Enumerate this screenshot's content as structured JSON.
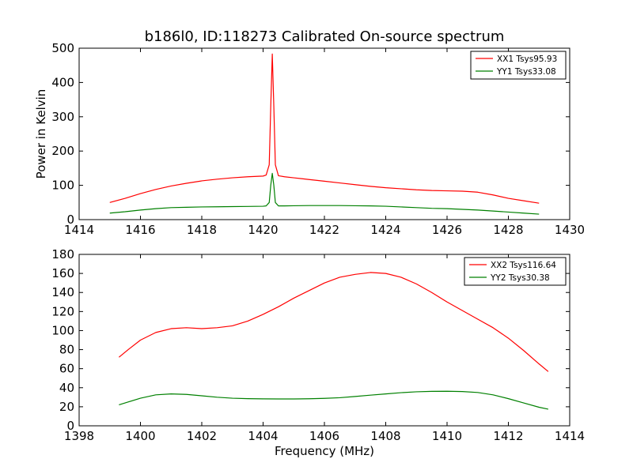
{
  "colors": {
    "xx": "#ff0000",
    "yy": "#008000",
    "axis": "#000000",
    "background": "#ffffff"
  },
  "chart_data": [
    {
      "type": "line",
      "title": "b186l0, ID:118273 Calibrated On-source spectrum",
      "xlabel": "",
      "ylabel": "Power in Kelvin",
      "xlim": [
        1414,
        1430
      ],
      "ylim": [
        0,
        500
      ],
      "xticks": [
        1414,
        1416,
        1418,
        1420,
        1422,
        1424,
        1426,
        1428,
        1430
      ],
      "yticks": [
        0,
        100,
        200,
        300,
        400,
        500
      ],
      "grid": false,
      "legend_position": "top-right",
      "series": [
        {
          "name": "XX1 Tsys95.93",
          "x": [
            1415.0,
            1415.5,
            1416.0,
            1416.5,
            1417.0,
            1417.5,
            1418.0,
            1418.5,
            1419.0,
            1419.5,
            1420.0,
            1420.1,
            1420.2,
            1420.25,
            1420.3,
            1420.35,
            1420.4,
            1420.5,
            1420.7,
            1421.0,
            1421.5,
            1422.0,
            1422.5,
            1423.0,
            1423.5,
            1424.0,
            1424.5,
            1425.0,
            1425.5,
            1426.0,
            1426.5,
            1427.0,
            1427.5,
            1428.0,
            1428.5,
            1429.0
          ],
          "y": [
            50,
            62,
            76,
            88,
            98,
            106,
            113,
            118,
            122,
            125,
            127,
            130,
            160,
            330,
            483,
            330,
            160,
            128,
            125,
            122,
            117,
            112,
            107,
            102,
            97,
            93,
            90,
            87,
            85,
            84,
            83,
            80,
            72,
            62,
            55,
            48
          ]
        },
        {
          "name": "YY1 Tsys33.08",
          "x": [
            1415.0,
            1415.5,
            1416.0,
            1416.5,
            1417.0,
            1417.5,
            1418.0,
            1418.5,
            1419.0,
            1419.5,
            1420.0,
            1420.1,
            1420.2,
            1420.25,
            1420.3,
            1420.35,
            1420.4,
            1420.5,
            1420.7,
            1421.0,
            1421.5,
            1422.0,
            1422.5,
            1423.0,
            1423.5,
            1424.0,
            1424.5,
            1425.0,
            1425.5,
            1426.0,
            1426.5,
            1427.0,
            1427.5,
            1428.0,
            1428.5,
            1429.0
          ],
          "y": [
            19,
            23,
            28,
            32,
            35,
            36,
            37,
            37.5,
            38,
            38.5,
            39,
            40,
            50,
            100,
            135,
            100,
            50,
            40,
            40,
            40.5,
            41,
            41,
            41,
            40.5,
            40,
            39,
            37,
            35,
            33,
            32,
            30,
            28,
            25,
            22,
            19,
            16
          ]
        }
      ]
    },
    {
      "type": "line",
      "title": "",
      "xlabel": "Frequency (MHz)",
      "ylabel": "",
      "xlim": [
        1398,
        1414
      ],
      "ylim": [
        0,
        180
      ],
      "xticks": [
        1398,
        1400,
        1402,
        1404,
        1406,
        1408,
        1410,
        1412,
        1414
      ],
      "yticks": [
        0,
        20,
        40,
        60,
        80,
        100,
        120,
        140,
        160,
        180
      ],
      "grid": false,
      "legend_position": "top-right",
      "series": [
        {
          "name": "XX2 Tsys116.64",
          "x": [
            1399.3,
            1399.6,
            1400.0,
            1400.5,
            1401.0,
            1401.5,
            1402.0,
            1402.5,
            1403.0,
            1403.5,
            1404.0,
            1404.5,
            1405.0,
            1405.5,
            1406.0,
            1406.5,
            1407.0,
            1407.5,
            1408.0,
            1408.5,
            1409.0,
            1409.5,
            1410.0,
            1410.5,
            1411.0,
            1411.5,
            1412.0,
            1412.5,
            1413.0,
            1413.3
          ],
          "y": [
            72,
            80,
            90,
            98,
            102,
            103,
            102,
            103,
            105,
            110,
            117,
            125,
            134,
            142,
            150,
            156,
            159,
            161,
            160,
            156,
            149,
            140,
            130,
            121,
            112,
            103,
            92,
            79,
            65,
            57
          ]
        },
        {
          "name": "YY2 Tsys30.38",
          "x": [
            1399.3,
            1399.6,
            1400.0,
            1400.5,
            1401.0,
            1401.5,
            1402.0,
            1402.5,
            1403.0,
            1403.5,
            1404.0,
            1404.5,
            1405.0,
            1405.5,
            1406.0,
            1406.5,
            1407.0,
            1407.5,
            1408.0,
            1408.5,
            1409.0,
            1409.5,
            1410.0,
            1410.5,
            1411.0,
            1411.5,
            1412.0,
            1412.5,
            1413.0,
            1413.3
          ],
          "y": [
            22,
            25,
            29,
            32.5,
            33.5,
            33,
            31.5,
            30,
            29,
            28.5,
            28.3,
            28.2,
            28.2,
            28.4,
            28.8,
            29.5,
            30.8,
            32.2,
            33.5,
            34.8,
            35.7,
            36.2,
            36.3,
            36,
            35,
            32.5,
            28.5,
            24,
            19.5,
            17.5
          ]
        }
      ]
    }
  ]
}
